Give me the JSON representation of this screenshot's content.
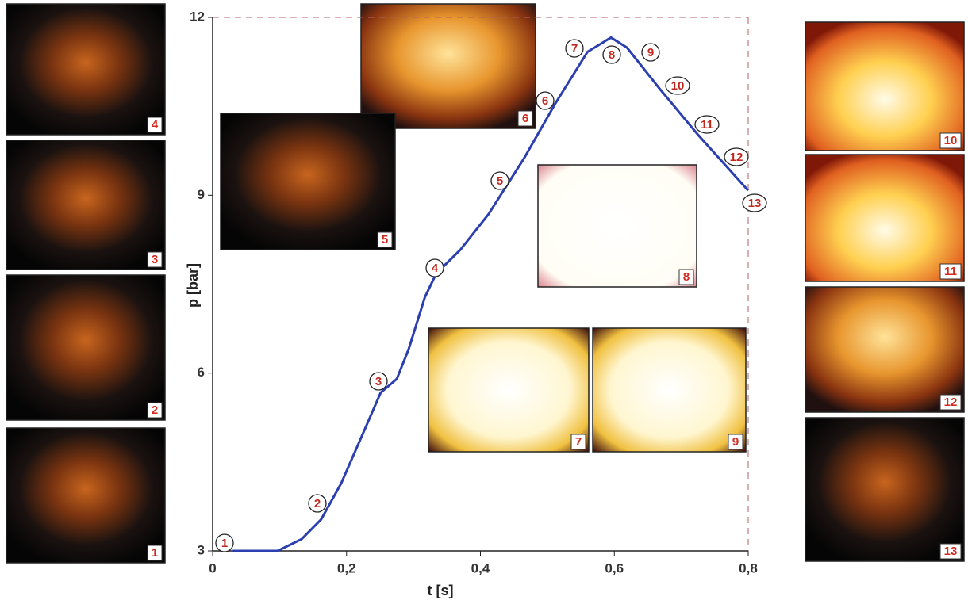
{
  "chart_data": {
    "type": "line",
    "x_label": "t [s]",
    "y_label": "p [bar]",
    "x": [
      0.03,
      0.097,
      0.133,
      0.162,
      0.192,
      0.228,
      0.251,
      0.275,
      0.293,
      0.317,
      0.334,
      0.37,
      0.412,
      0.465,
      0.512,
      0.56,
      0.595,
      0.619,
      0.666,
      0.725,
      0.8
    ],
    "series": [
      {
        "color": "#2b3fb0",
        "values": [
          3.0,
          3.0,
          3.2,
          3.53,
          4.14,
          5.07,
          5.67,
          5.9,
          6.41,
          7.28,
          7.68,
          8.08,
          8.68,
          9.62,
          10.55,
          11.42,
          11.66,
          11.49,
          10.82,
          10.02,
          9.08
        ]
      }
    ],
    "xlim": [
      0,
      0.8
    ],
    "ylim": [
      3,
      12
    ],
    "xticks": [
      0,
      {
        "value": 0.2,
        "label": "0,2"
      },
      {
        "value": 0.4,
        "label": "0,4"
      },
      {
        "value": 0.6,
        "label": "0,6"
      },
      {
        "value": 0.8,
        "label": "0,8"
      }
    ],
    "yticks": [
      3,
      6,
      9,
      12
    ],
    "grid": false,
    "annotations": [
      "1",
      "2",
      "3",
      "4",
      "5",
      "6",
      "7",
      "8",
      "9",
      "10",
      "11",
      "12",
      "13"
    ]
  }
}
